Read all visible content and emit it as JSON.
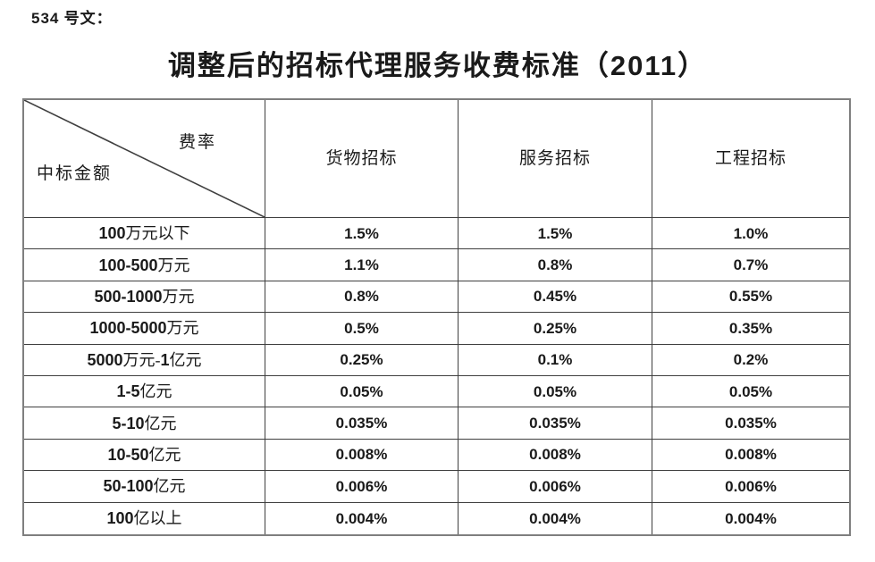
{
  "doc_number": "534 号文：",
  "title": "调整后的招标代理服务收费标准（2011）",
  "table": {
    "corner": {
      "top_right": "费率",
      "bottom_left": "中标金额"
    },
    "columns": [
      "货物招标",
      "服务招标",
      "工程招标"
    ],
    "rows": [
      {
        "label": "100 万元以下",
        "values": [
          "1.5%",
          "1.5%",
          "1.0%"
        ]
      },
      {
        "label": "100-500 万元",
        "values": [
          "1.1%",
          "0.8%",
          "0.7%"
        ]
      },
      {
        "label": "500-1000 万元",
        "values": [
          "0.8%",
          "0.45%",
          "0.55%"
        ]
      },
      {
        "label": "1000-5000 万元",
        "values": [
          "0.5%",
          "0.25%",
          "0.35%"
        ]
      },
      {
        "label": "5000 万元-1 亿元",
        "values": [
          "0.25%",
          "0.1%",
          "0.2%"
        ]
      },
      {
        "label": "1-5 亿元",
        "values": [
          "0.05%",
          "0.05%",
          "0.05%"
        ]
      },
      {
        "label": "5-10 亿元",
        "values": [
          "0.035%",
          "0.035%",
          "0.035%"
        ]
      },
      {
        "label": "10-50 亿元",
        "values": [
          "0.008%",
          "0.008%",
          "0.008%"
        ]
      },
      {
        "label": "50-100 亿元",
        "values": [
          "0.006%",
          "0.006%",
          "0.006%"
        ]
      },
      {
        "label": "100 亿以上",
        "values": [
          "0.004%",
          "0.004%",
          "0.004%"
        ]
      }
    ]
  },
  "colors": {
    "text": "#1a1a1a",
    "grid_line": "#3f3f3f",
    "outer_border": "#7f7f7f"
  }
}
